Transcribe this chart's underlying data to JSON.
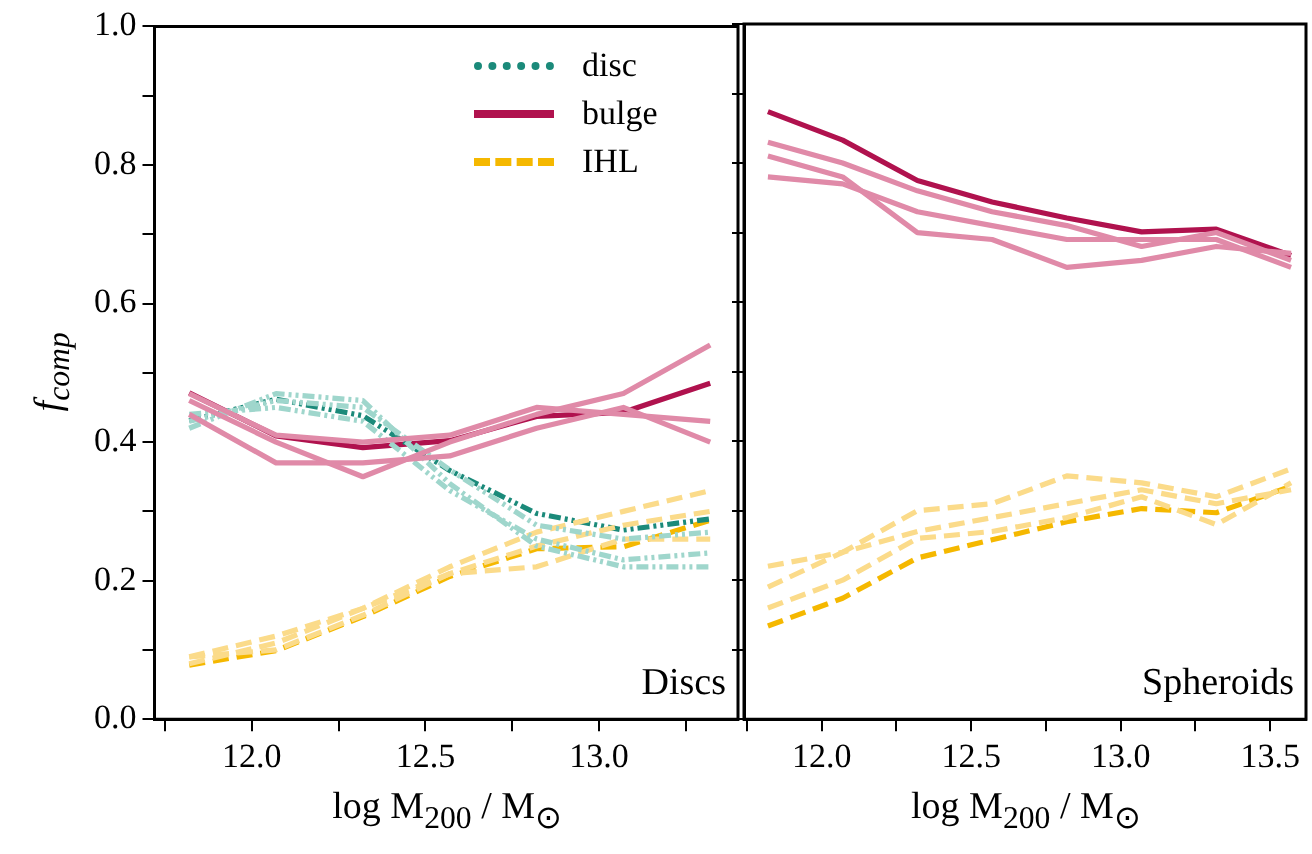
{
  "chart_data": [
    {
      "type": "line",
      "xlabel": "log M$_{200}$ / M$_{⊙}$",
      "ylabel": "f$_{comp}$",
      "annotations": [
        "Discs"
      ],
      "legend": "top right",
      "x": [
        11.82,
        12.07,
        12.32,
        12.57,
        12.82,
        13.07,
        13.32
      ],
      "xlim": [
        11.72,
        13.4
      ],
      "ylim": [
        0,
        1
      ],
      "xticks": [
        {
          "value": 11.75,
          "label": null
        },
        {
          "value": 12,
          "label": "12.0"
        },
        {
          "value": 12.25,
          "label": null
        },
        {
          "value": 12.5,
          "label": "12.5"
        },
        {
          "value": 12.75,
          "label": null
        },
        {
          "value": 13,
          "label": "13.0"
        },
        {
          "value": 13.25,
          "label": null
        }
      ],
      "yticks": [
        {
          "value": 0,
          "label": "0.0"
        },
        {
          "value": 0.1,
          "label": null
        },
        {
          "value": 0.2,
          "label": "0.2"
        },
        {
          "value": 0.3,
          "label": null
        },
        {
          "value": 0.4,
          "label": "0.4"
        },
        {
          "value": 0.5,
          "label": null
        },
        {
          "value": 0.6,
          "label": "0.6"
        },
        {
          "value": 0.7,
          "label": null
        },
        {
          "value": 0.8,
          "label": "0.8"
        },
        {
          "value": 0.9,
          "label": null
        },
        {
          "value": 1,
          "label": "1.0"
        }
      ],
      "series": [
        {
          "color": "#e08aa8",
          "line_style": "solid",
          "values": [
            0.46,
            0.4,
            0.35,
            0.4,
            0.44,
            0.47,
            0.54
          ]
        },
        {
          "color": "#e08aa8",
          "line_style": "solid",
          "values": [
            0.44,
            0.37,
            0.37,
            0.38,
            0.42,
            0.45,
            0.4
          ]
        },
        {
          "color": "#e08aa8",
          "line_style": "solid",
          "values": [
            0.47,
            0.41,
            0.4,
            0.41,
            0.45,
            0.44,
            0.43
          ]
        },
        {
          "color": "#9fd6cc",
          "line_style": "dotted",
          "values": [
            0.42,
            0.47,
            0.46,
            0.34,
            0.25,
            0.22,
            0.22
          ]
        },
        {
          "color": "#9fd6cc",
          "line_style": "dotted",
          "values": [
            0.44,
            0.45,
            0.43,
            0.33,
            0.26,
            0.23,
            0.24
          ]
        },
        {
          "color": "#9fd6cc",
          "line_style": "dotted",
          "values": [
            0.43,
            0.46,
            0.45,
            0.36,
            0.28,
            0.26,
            0.27
          ]
        },
        {
          "color": "#fbdb8a",
          "line_style": "dashed",
          "values": [
            0.09,
            0.12,
            0.16,
            0.22,
            0.27,
            0.3,
            0.33
          ]
        },
        {
          "color": "#fbdb8a",
          "line_style": "dashed",
          "values": [
            0.08,
            0.11,
            0.16,
            0.21,
            0.25,
            0.28,
            0.3
          ]
        },
        {
          "color": "#fbdb8a",
          "line_style": "dashed",
          "values": [
            0.09,
            0.1,
            0.15,
            0.21,
            0.22,
            0.26,
            0.26
          ]
        },
        {
          "name": "disc",
          "color": "#1b8a7a",
          "line_style": "dotted",
          "values": [
            0.431,
            0.462,
            0.438,
            0.359,
            0.297,
            0.273,
            0.289
          ]
        },
        {
          "name": "bulge",
          "color": "#b0124e",
          "line_style": "solid",
          "values": [
            0.471,
            0.409,
            0.392,
            0.402,
            0.437,
            0.443,
            0.485
          ]
        },
        {
          "name": "IHL",
          "color": "#f5b800",
          "line_style": "dashed",
          "values": [
            0.078,
            0.099,
            0.148,
            0.206,
            0.246,
            0.249,
            0.287
          ]
        }
      ]
    },
    {
      "type": "line",
      "xlabel": "log M$_{200}$ / M$_{⊙}$",
      "annotations": [
        "Spheroids"
      ],
      "tick_labels": "x",
      "x": [
        11.82,
        12.07,
        12.32,
        12.57,
        12.82,
        13.07,
        13.32,
        13.57
      ],
      "xlim": [
        11.74,
        13.62
      ],
      "ylim": [
        0,
        1
      ],
      "xticks": [
        {
          "value": 11.75,
          "label": null
        },
        {
          "value": 12,
          "label": "12.0"
        },
        {
          "value": 12.25,
          "label": null
        },
        12.5,
        {
          "value": 12.75,
          "label": null
        },
        {
          "value": 13,
          "label": "13.0"
        },
        {
          "value": 13.25,
          "label": null
        },
        {
          "value": 13.5,
          "label": "13.5"
        }
      ],
      "yticks": [
        0,
        0.1,
        0.2,
        0.3,
        0.4,
        0.5,
        0.6,
        0.7,
        0.8,
        0.9,
        1
      ],
      "series": [
        {
          "color": "#e08aa8",
          "line_style": "solid",
          "values": [
            0.81,
            0.78,
            0.7,
            0.69,
            0.65,
            0.66,
            0.68,
            0.67
          ]
        },
        {
          "color": "#e08aa8",
          "line_style": "solid",
          "values": [
            0.78,
            0.77,
            0.73,
            0.71,
            0.69,
            0.69,
            0.69,
            0.65
          ]
        },
        {
          "color": "#e08aa8",
          "line_style": "solid",
          "values": [
            0.83,
            0.8,
            0.76,
            0.73,
            0.71,
            0.68,
            0.7,
            0.66
          ]
        },
        {
          "color": "#fbdb8a",
          "line_style": "dashed",
          "values": [
            0.22,
            0.24,
            0.3,
            0.31,
            0.35,
            0.34,
            0.32,
            0.36
          ]
        },
        {
          "color": "#fbdb8a",
          "line_style": "dashed",
          "values": [
            0.19,
            0.24,
            0.27,
            0.29,
            0.31,
            0.33,
            0.31,
            0.33
          ]
        },
        {
          "color": "#fbdb8a",
          "line_style": "dashed",
          "values": [
            0.16,
            0.2,
            0.26,
            0.27,
            0.29,
            0.32,
            0.28,
            0.34
          ]
        },
        {
          "color": "#b0124e",
          "line_style": "solid",
          "values": [
            0.874,
            0.833,
            0.775,
            0.744,
            0.721,
            0.701,
            0.705,
            0.667
          ]
        },
        {
          "color": "#f5b800",
          "line_style": "dashed",
          "values": [
            0.134,
            0.174,
            0.232,
            0.258,
            0.284,
            0.303,
            0.297,
            0.335
          ]
        }
      ]
    }
  ]
}
